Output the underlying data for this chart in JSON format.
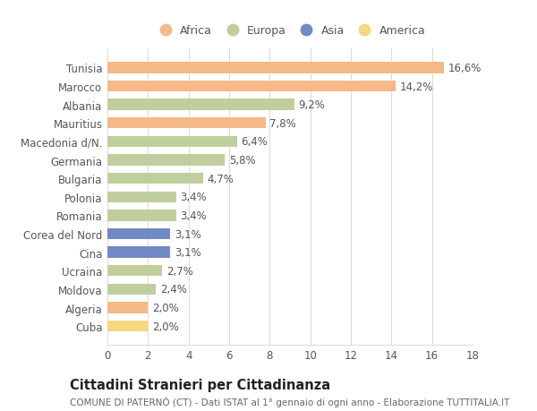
{
  "categories": [
    "Tunisia",
    "Marocco",
    "Albania",
    "Mauritius",
    "Macedonia d/N.",
    "Germania",
    "Bulgaria",
    "Polonia",
    "Romania",
    "Corea del Nord",
    "Cina",
    "Ucraina",
    "Moldova",
    "Algeria",
    "Cuba"
  ],
  "values": [
    16.6,
    14.2,
    9.2,
    7.8,
    6.4,
    5.8,
    4.7,
    3.4,
    3.4,
    3.1,
    3.1,
    2.7,
    2.4,
    2.0,
    2.0
  ],
  "labels": [
    "16,6%",
    "14,2%",
    "9,2%",
    "7,8%",
    "6,4%",
    "5,8%",
    "4,7%",
    "3,4%",
    "3,4%",
    "3,1%",
    "3,1%",
    "2,7%",
    "2,4%",
    "2,0%",
    "2,0%"
  ],
  "continent": [
    "Africa",
    "Africa",
    "Europa",
    "Africa",
    "Europa",
    "Europa",
    "Europa",
    "Europa",
    "Europa",
    "Asia",
    "Asia",
    "Europa",
    "Europa",
    "Africa",
    "America"
  ],
  "colors": {
    "Africa": "#F5B98A",
    "Europa": "#C0CE9E",
    "Asia": "#7189C4",
    "America": "#F5D880"
  },
  "title": "Cittadini Stranieri per Cittadinanza",
  "subtitle": "COMUNE DI PATERNÒ (CT) - Dati ISTAT al 1° gennaio di ogni anno - Elaborazione TUTTITALIA.IT",
  "xlim": [
    0,
    18
  ],
  "xticks": [
    0,
    2,
    4,
    6,
    8,
    10,
    12,
    14,
    16,
    18
  ],
  "background_color": "#ffffff",
  "grid_color": "#dddddd",
  "bar_height": 0.6,
  "label_fontsize": 8.5,
  "tick_fontsize": 8.5,
  "title_fontsize": 10.5,
  "subtitle_fontsize": 7.5
}
